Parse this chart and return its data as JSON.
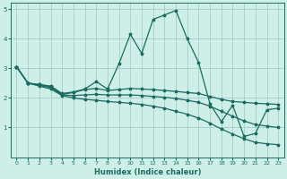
{
  "xlabel": "Humidex (Indice chaleur)",
  "xlim": [
    -0.5,
    23.5
  ],
  "ylim": [
    0,
    5.2
  ],
  "xticks": [
    0,
    1,
    2,
    3,
    4,
    5,
    6,
    7,
    8,
    9,
    10,
    11,
    12,
    13,
    14,
    15,
    16,
    17,
    18,
    19,
    20,
    21,
    22,
    23
  ],
  "yticks": [
    1,
    2,
    3,
    4,
    5
  ],
  "bg_color": "#ceeee8",
  "grid_color": "#a8ccc8",
  "line_color": "#1a6b60",
  "lines": [
    {
      "x": [
        0,
        1,
        2,
        3,
        4,
        5,
        6,
        7,
        8,
        9,
        10,
        11,
        12,
        13,
        14,
        15,
        16,
        17,
        18,
        19,
        20,
        21,
        22,
        23
      ],
      "y": [
        3.05,
        2.5,
        2.45,
        2.4,
        2.15,
        2.2,
        2.3,
        2.55,
        2.3,
        3.15,
        4.15,
        3.5,
        4.65,
        4.8,
        4.95,
        4.0,
        3.2,
        1.8,
        1.2,
        1.75,
        0.7,
        0.8,
        1.6,
        1.65
      ]
    },
    {
      "x": [
        0,
        1,
        2,
        3,
        4,
        5,
        6,
        7,
        8,
        9,
        10,
        11,
        12,
        13,
        14,
        15,
        16,
        17,
        18,
        19,
        20,
        21,
        22,
        23
      ],
      "y": [
        3.05,
        2.5,
        2.45,
        2.38,
        2.12,
        2.18,
        2.28,
        2.32,
        2.25,
        2.28,
        2.32,
        2.3,
        2.28,
        2.25,
        2.22,
        2.18,
        2.15,
        2.05,
        1.95,
        1.88,
        1.85,
        1.82,
        1.8,
        1.78
      ]
    },
    {
      "x": [
        0,
        1,
        2,
        3,
        4,
        5,
        6,
        7,
        8,
        9,
        10,
        11,
        12,
        13,
        14,
        15,
        16,
        17,
        18,
        19,
        20,
        21,
        22,
        23
      ],
      "y": [
        3.05,
        2.5,
        2.42,
        2.35,
        2.1,
        2.08,
        2.1,
        2.12,
        2.1,
        2.1,
        2.1,
        2.08,
        2.05,
        2.02,
        1.98,
        1.92,
        1.85,
        1.72,
        1.55,
        1.38,
        1.22,
        1.1,
        1.05,
        1.0
      ]
    },
    {
      "x": [
        0,
        1,
        2,
        3,
        4,
        5,
        6,
        7,
        8,
        9,
        10,
        11,
        12,
        13,
        14,
        15,
        16,
        17,
        18,
        19,
        20,
        21,
        22,
        23
      ],
      "y": [
        3.05,
        2.5,
        2.4,
        2.3,
        2.08,
        2.0,
        1.95,
        1.92,
        1.88,
        1.85,
        1.82,
        1.78,
        1.72,
        1.65,
        1.55,
        1.45,
        1.32,
        1.15,
        0.95,
        0.78,
        0.62,
        0.5,
        0.45,
        0.42
      ]
    }
  ]
}
